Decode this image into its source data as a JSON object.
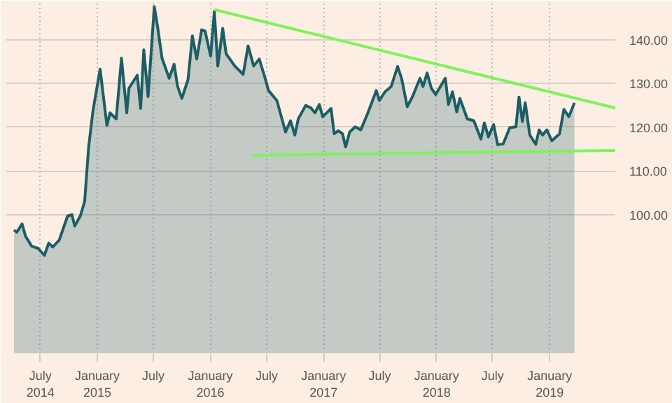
{
  "chart_data": {
    "type": "area",
    "xlim": [
      "2014-03-13",
      "2019-08-01"
    ],
    "ylim": [
      68.3,
      148.3
    ],
    "xticks": [
      {
        "value": "2014-07-01",
        "label": "July\n2014"
      },
      {
        "value": "2015-01-01",
        "label": "January\n2015"
      },
      {
        "value": "2015-07-01",
        "label": "July"
      },
      {
        "value": "2016-01-01",
        "label": "January\n2016"
      },
      {
        "value": "2016-07-01",
        "label": "July"
      },
      {
        "value": "2017-01-01",
        "label": "January\n2017"
      },
      {
        "value": "2017-07-01",
        "label": "July"
      },
      {
        "value": "2018-01-01",
        "label": "January\n2018"
      },
      {
        "value": "2018-07-01",
        "label": "July"
      },
      {
        "value": "2019-01-01",
        "label": "January\n2019"
      }
    ],
    "yticks": [
      {
        "value": 100,
        "label": "100.00"
      },
      {
        "value": 110,
        "label": "110.00"
      },
      {
        "value": 120,
        "label": "120.00"
      },
      {
        "value": 130,
        "label": "130.00"
      },
      {
        "value": 140,
        "label": "140.00"
      }
    ],
    "grid": true,
    "series": [
      {
        "color": "#1d5e66",
        "x": [
          "2014-04-07",
          "2014-04-16",
          "2014-05-03",
          "2014-05-14",
          "2014-06-03",
          "2014-06-24",
          "2014-07-14",
          "2014-07-28",
          "2014-08-10",
          "2014-08-31",
          "2014-09-27",
          "2014-10-11",
          "2014-10-20",
          "2014-11-07",
          "2014-11-21",
          "2014-12-04",
          "2014-12-18",
          "2015-01-10",
          "2015-02-01",
          "2015-02-11",
          "2015-03-03",
          "2015-03-20",
          "2015-04-06",
          "2015-04-13",
          "2015-05-10",
          "2015-05-21",
          "2015-05-31",
          "2015-06-14",
          "2015-07-04",
          "2015-07-15",
          "2015-07-29",
          "2015-08-21",
          "2015-09-06",
          "2015-09-17",
          "2015-10-01",
          "2015-10-21",
          "2015-11-04",
          "2015-11-18",
          "2015-12-04",
          "2015-12-15",
          "2016-01-02",
          "2016-01-14",
          "2016-01-25",
          "2016-02-10",
          "2016-02-21",
          "2016-03-20",
          "2016-04-16",
          "2016-05-02",
          "2016-05-20",
          "2016-06-07",
          "2016-06-26",
          "2016-07-07",
          "2016-08-03",
          "2016-08-31",
          "2016-09-16",
          "2016-09-30",
          "2016-10-11",
          "2016-11-04",
          "2016-11-21",
          "2016-12-04",
          "2016-12-18",
          "2016-12-29",
          "2017-01-25",
          "2017-02-04",
          "2017-02-17",
          "2017-03-03",
          "2017-03-13",
          "2017-03-26",
          "2017-04-13",
          "2017-05-01",
          "2017-05-24",
          "2017-06-20",
          "2017-06-30",
          "2017-07-18",
          "2017-08-07",
          "2017-08-28",
          "2017-09-10",
          "2017-09-28",
          "2017-10-15",
          "2017-11-08",
          "2017-11-18",
          "2017-12-01",
          "2017-12-15",
          "2017-12-29",
          "2018-01-29",
          "2018-02-08",
          "2018-02-21",
          "2018-03-07",
          "2018-03-17",
          "2018-04-10",
          "2018-05-01",
          "2018-05-24",
          "2018-06-04",
          "2018-06-17",
          "2018-07-04",
          "2018-07-17",
          "2018-08-04",
          "2018-08-25",
          "2018-09-14",
          "2018-09-24",
          "2018-10-05",
          "2018-10-14",
          "2018-10-29",
          "2018-11-17",
          "2018-11-28",
          "2018-12-09",
          "2018-12-23",
          "2019-01-08",
          "2019-02-02",
          "2019-02-16",
          "2019-03-04",
          "2019-03-22"
        ],
        "values": [
          96.5,
          96.0,
          97.9,
          95.1,
          92.8,
          92.3,
          90.7,
          93.5,
          92.6,
          94.2,
          99.7,
          100.0,
          97.4,
          99.7,
          103.0,
          115.5,
          123.8,
          133.3,
          120.4,
          123.3,
          121.9,
          135.8,
          123.3,
          128.9,
          131.9,
          124.3,
          137.7,
          127.0,
          147.6,
          142.8,
          135.8,
          131.2,
          134.4,
          129.4,
          126.6,
          130.9,
          140.9,
          135.6,
          142.3,
          142.0,
          136.3,
          146.5,
          134.0,
          142.6,
          136.8,
          134.0,
          132.1,
          138.6,
          134.0,
          135.6,
          131.2,
          128.4,
          126.1,
          118.9,
          121.5,
          118.2,
          121.9,
          125.0,
          124.4,
          123.3,
          125.2,
          122.4,
          124.3,
          118.5,
          119.2,
          118.5,
          115.5,
          118.9,
          120.1,
          119.4,
          123.3,
          128.4,
          126.1,
          128.1,
          129.3,
          133.9,
          131.1,
          124.7,
          127.0,
          131.2,
          129.3,
          132.4,
          128.9,
          127.5,
          131.2,
          125.2,
          128.1,
          123.5,
          126.6,
          121.9,
          121.5,
          117.3,
          121.0,
          117.8,
          120.6,
          116.0,
          116.2,
          119.9,
          120.1,
          126.9,
          121.3,
          125.6,
          118.2,
          116.1,
          119.4,
          118.2,
          119.4,
          116.9,
          118.5,
          124.1,
          122.4,
          125.6
        ]
      },
      {
        "type": "line",
        "color": "#7ef25c",
        "x": [
          "2016-01-14",
          "2019-08-01"
        ],
        "values": [
          146.9,
          124.4
        ]
      },
      {
        "type": "line",
        "color": "#7ef25c",
        "x": [
          "2016-05-16",
          "2019-08-01"
        ],
        "values": [
          113.6,
          114.7
        ]
      }
    ]
  }
}
